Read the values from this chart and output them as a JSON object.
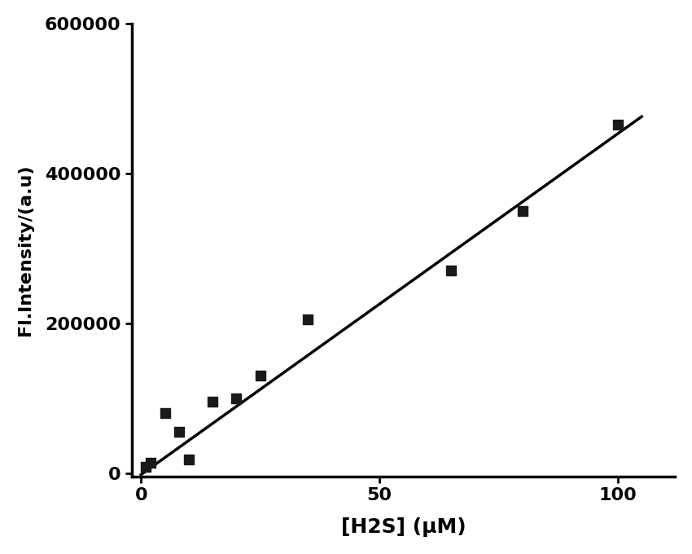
{
  "scatter_x": [
    1,
    2,
    5,
    8,
    10,
    15,
    20,
    25,
    35,
    65,
    80,
    100
  ],
  "scatter_y": [
    8000,
    14000,
    80000,
    55000,
    18000,
    95000,
    100000,
    130000,
    205000,
    270000,
    350000,
    465000
  ],
  "line_x_start": 0,
  "line_x_end": 105,
  "line_slope": 4550,
  "line_intercept": -2000,
  "xlabel": "[H2S] (μM)",
  "ylabel": "Fl.Intensity/(a.u)",
  "xlim": [
    -2,
    112
  ],
  "ylim": [
    -5000,
    600000
  ],
  "xticks": [
    0,
    50,
    100
  ],
  "yticks": [
    0,
    200000,
    400000,
    600000
  ],
  "background_color": "#ffffff",
  "scatter_color": "#1a1a1a",
  "line_color": "#000000",
  "marker": "s",
  "marker_size": 9,
  "line_width": 2.5,
  "xlabel_fontsize": 18,
  "ylabel_fontsize": 16,
  "tick_fontsize": 16,
  "tick_fontweight": "bold",
  "label_fontweight": "bold",
  "figwidth": 8.5,
  "figheight": 6.8
}
